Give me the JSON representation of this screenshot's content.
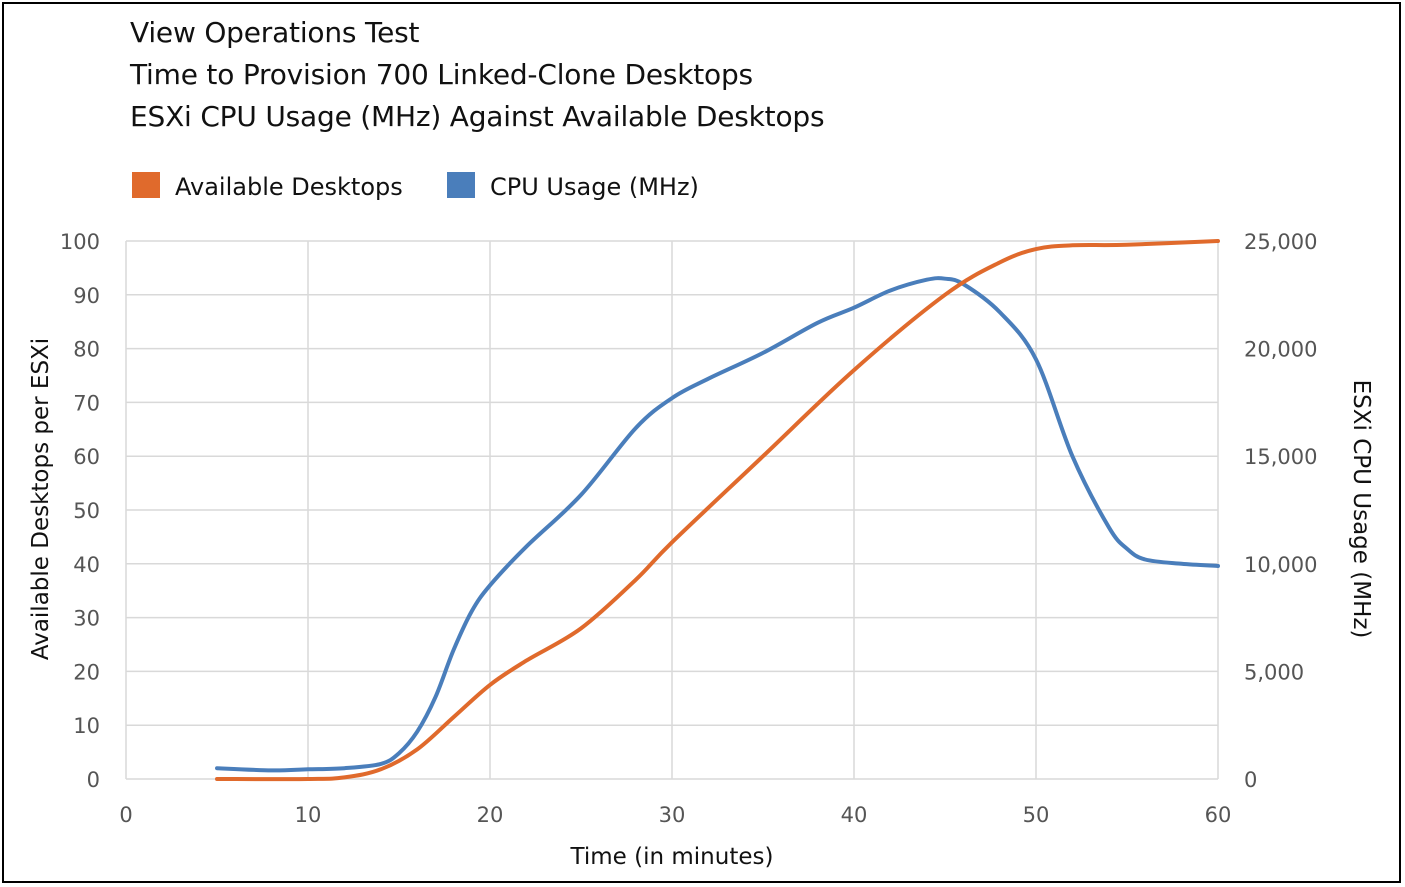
{
  "chart_data": {
    "type": "line",
    "title_lines": [
      "View Operations Test",
      "Time to Provision 700 Linked-Clone Desktops",
      "ESXi CPU Usage (MHz) Against Available Desktops"
    ],
    "xlabel": "Time (in minutes)",
    "ylabel_left": "Available Desktops per ESXi",
    "ylabel_right": "ESXi CPU Usage (MHz)",
    "xlim": [
      0,
      60
    ],
    "x_ticks": [
      "0",
      "10",
      "20",
      "30",
      "40",
      "50",
      "60"
    ],
    "ylim_left": [
      0,
      100
    ],
    "y_ticks_left": [
      "0",
      "10",
      "20",
      "30",
      "40",
      "50",
      "60",
      "70",
      "80",
      "90",
      "100"
    ],
    "ylim_right": [
      0,
      25000
    ],
    "y_ticks_right": [
      "0",
      "5,000",
      "10,000",
      "15,000",
      "20,000",
      "25,000"
    ],
    "grid": true,
    "legend_position": "top-left",
    "series": [
      {
        "name": "Available Desktops",
        "axis": "left",
        "color": "#e06a2c",
        "x": [
          5,
          10,
          12,
          14,
          16,
          18,
          20,
          22,
          25,
          28,
          30,
          35,
          40,
          45,
          48,
          50,
          52,
          55,
          60
        ],
        "y": [
          0,
          0,
          0.3,
          1.8,
          5.5,
          11.5,
          17.5,
          22,
          28,
          37,
          44,
          60,
          76,
          90,
          96,
          98.5,
          99.2,
          99.3,
          100
        ]
      },
      {
        "name": "CPU Usage (MHz)",
        "axis": "right",
        "color": "#4a7ebb",
        "x": [
          5,
          8,
          10,
          12,
          14,
          15,
          16,
          17,
          18,
          19,
          20,
          22,
          25,
          28,
          30,
          32,
          35,
          38,
          40,
          42,
          44,
          45,
          46,
          48,
          50,
          52,
          54,
          55,
          56,
          58,
          60
        ],
        "y": [
          500,
          400,
          450,
          500,
          700,
          1200,
          2200,
          3800,
          6000,
          7800,
          9000,
          10800,
          13200,
          16300,
          17700,
          18600,
          19800,
          21200,
          21900,
          22700,
          23200,
          23250,
          23000,
          21700,
          19500,
          15000,
          11700,
          10700,
          10200,
          10000,
          9900
        ]
      }
    ]
  },
  "colors": {
    "available_desktops": "#e06a2c",
    "cpu_usage": "#4a7ebb",
    "grid": "#d9d9d9",
    "tick_text": "#555555"
  }
}
